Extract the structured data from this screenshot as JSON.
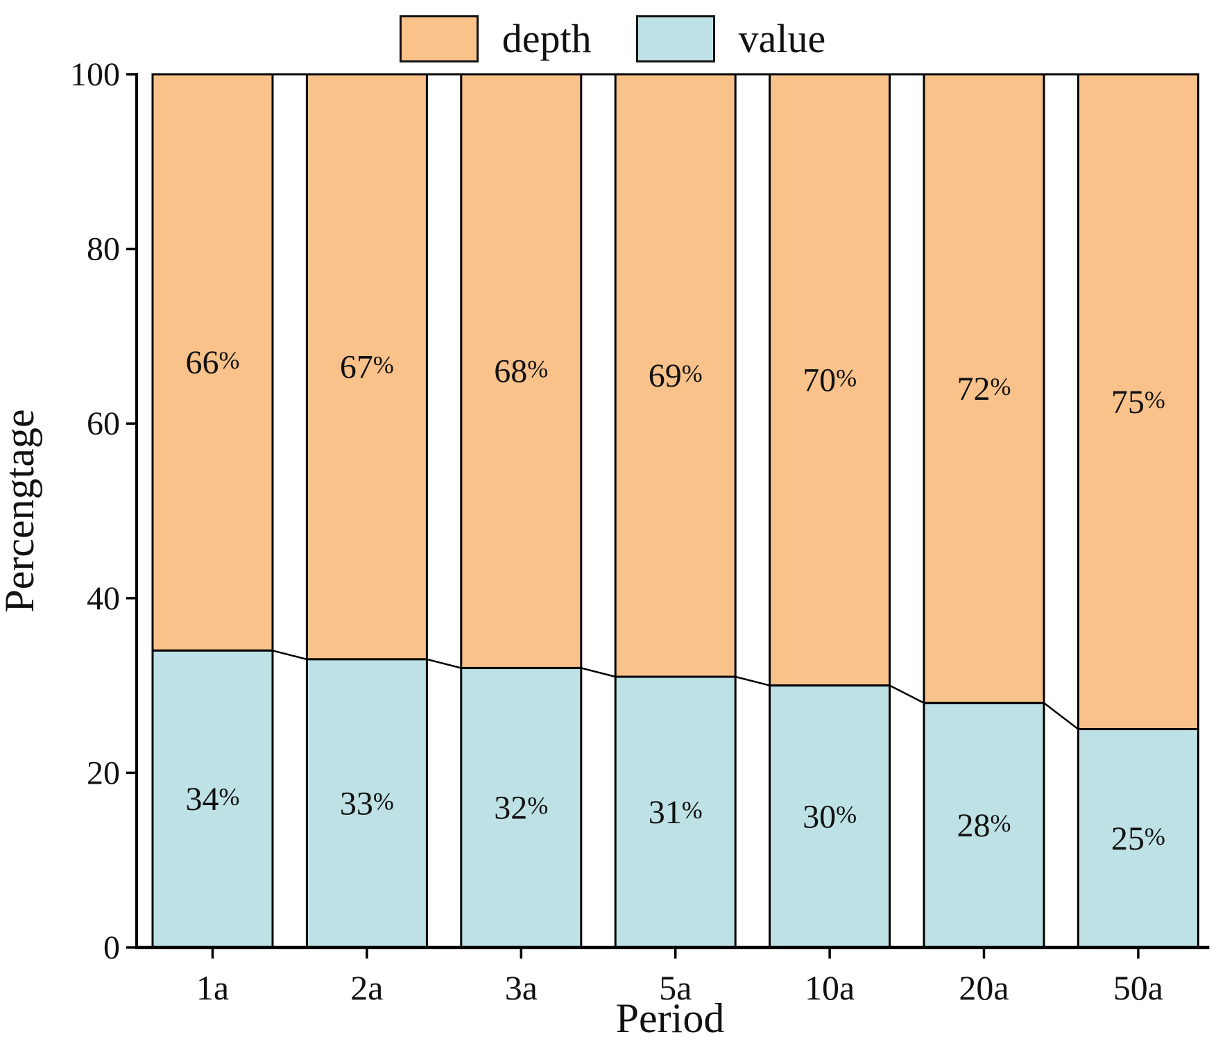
{
  "legend": {
    "position": "top",
    "items": [
      {
        "label": "depth",
        "color": "#F9C28B"
      },
      {
        "label": "value",
        "color": "#BEE1E5"
      }
    ]
  },
  "chart_data": {
    "type": "bar",
    "subtype": "stacked-percentage-with-connectors",
    "title": "",
    "xlabel": "Period",
    "ylabel": "Percengtage",
    "categories": [
      "1a",
      "2a",
      "3a",
      "5a",
      "10a",
      "20a",
      "50a"
    ],
    "series": [
      {
        "name": "value",
        "color": "#BEE1E5",
        "values": [
          34,
          33,
          32,
          31,
          30,
          28,
          25
        ],
        "labels": [
          "34%",
          "33%",
          "32%",
          "31%",
          "30%",
          "28%",
          "25%"
        ]
      },
      {
        "name": "depth",
        "color": "#F9C28B",
        "values": [
          66,
          67,
          68,
          69,
          70,
          72,
          75
        ],
        "labels": [
          "66%",
          "67%",
          "68%",
          "69%",
          "70%",
          "72%",
          "75%"
        ]
      }
    ],
    "ylim": [
      0,
      100
    ],
    "y_ticks": [
      "0",
      "20",
      "40",
      "60",
      "80",
      "100"
    ],
    "grid": "off",
    "bar_edge_color": "#000000",
    "connector_lines": true,
    "legend_position": "top"
  }
}
